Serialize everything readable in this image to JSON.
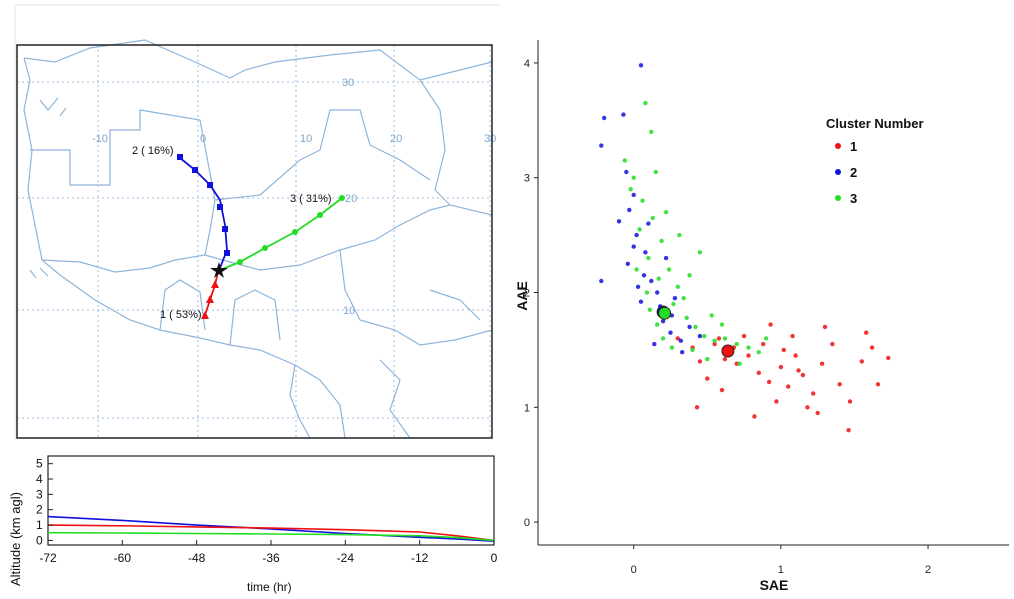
{
  "chart_data": [
    {
      "type": "map",
      "lat_labels": [
        "30",
        "20",
        "10"
      ],
      "lon_labels": [
        "-10",
        "0",
        "10",
        "20",
        "30"
      ],
      "trajectories": [
        {
          "label": "1 ( 53%)",
          "color": "#ee1111"
        },
        {
          "label": "2 ( 16%)",
          "color": "#1111dd"
        },
        {
          "label": "3 ( 31%)",
          "color": "#22dd22"
        }
      ]
    },
    {
      "type": "line",
      "ylabel": "Altitude  (km agl)",
      "xlabel": "time (hr)",
      "x_ticks": [
        -72,
        -60,
        -48,
        -36,
        -24,
        -12,
        0
      ],
      "y_ticks": [
        0,
        1,
        2,
        3,
        4,
        5
      ],
      "xlim": [
        -72,
        0
      ],
      "ylim": [
        -0.3,
        5.5
      ],
      "series": [
        {
          "color": "#1111dd",
          "points": [
            [
              -72,
              1.55
            ],
            [
              -60,
              1.3
            ],
            [
              -48,
              1.0
            ],
            [
              -36,
              0.75
            ],
            [
              -24,
              0.45
            ],
            [
              -12,
              0.2
            ],
            [
              -6,
              0.1
            ],
            [
              0,
              -0.05
            ]
          ]
        },
        {
          "color": "#ee1111",
          "points": [
            [
              -72,
              1.0
            ],
            [
              -60,
              0.95
            ],
            [
              -48,
              0.88
            ],
            [
              -36,
              0.8
            ],
            [
              -24,
              0.7
            ],
            [
              -12,
              0.55
            ],
            [
              -6,
              0.3
            ],
            [
              0,
              0.0
            ]
          ]
        },
        {
          "color": "#22dd22",
          "points": [
            [
              -72,
              0.5
            ],
            [
              -60,
              0.48
            ],
            [
              -48,
              0.45
            ],
            [
              -36,
              0.42
            ],
            [
              -24,
              0.38
            ],
            [
              -12,
              0.3
            ],
            [
              -6,
              0.18
            ],
            [
              0,
              0.0
            ]
          ]
        }
      ]
    },
    {
      "type": "scatter",
      "xlabel": "SAE",
      "ylabel": "AAE",
      "xlim": [
        -0.65,
        2.55
      ],
      "ylim": [
        -0.2,
        4.2
      ],
      "x_ticks": [
        0,
        1,
        2
      ],
      "y_ticks": [
        0,
        1,
        2,
        3,
        4
      ],
      "legend_title": "Cluster Number",
      "legend_entries": [
        "1",
        "2",
        "3"
      ],
      "legend_position": "top-right",
      "colors": [
        "#ee1111",
        "#1111dd",
        "#22dd22"
      ],
      "centroids": [
        {
          "cluster": "1",
          "x": 0.64,
          "y": 1.49
        },
        {
          "cluster": "2",
          "x": 0.2,
          "y": 1.83
        },
        {
          "cluster": "3",
          "x": 0.21,
          "y": 1.82
        }
      ],
      "points": [
        {
          "cluster": "1",
          "x": 0.55,
          "y": 1.55
        },
        {
          "cluster": "1",
          "x": 0.62,
          "y": 1.42
        },
        {
          "cluster": "1",
          "x": 0.7,
          "y": 1.38
        },
        {
          "cluster": "1",
          "x": 0.78,
          "y": 1.45
        },
        {
          "cluster": "1",
          "x": 0.85,
          "y": 1.3
        },
        {
          "cluster": "1",
          "x": 0.92,
          "y": 1.22
        },
        {
          "cluster": "1",
          "x": 1.0,
          "y": 1.35
        },
        {
          "cluster": "1",
          "x": 1.05,
          "y": 1.18
        },
        {
          "cluster": "1",
          "x": 1.1,
          "y": 1.45
        },
        {
          "cluster": "1",
          "x": 1.15,
          "y": 1.28
        },
        {
          "cluster": "1",
          "x": 1.22,
          "y": 1.12
        },
        {
          "cluster": "1",
          "x": 1.28,
          "y": 1.38
        },
        {
          "cluster": "1",
          "x": 1.35,
          "y": 1.55
        },
        {
          "cluster": "1",
          "x": 1.4,
          "y": 1.2
        },
        {
          "cluster": "1",
          "x": 1.47,
          "y": 1.05
        },
        {
          "cluster": "1",
          "x": 1.55,
          "y": 1.4
        },
        {
          "cluster": "1",
          "x": 1.62,
          "y": 1.52
        },
        {
          "cluster": "1",
          "x": 1.73,
          "y": 1.43
        },
        {
          "cluster": "1",
          "x": 1.46,
          "y": 0.8
        },
        {
          "cluster": "1",
          "x": 1.25,
          "y": 0.95
        },
        {
          "cluster": "1",
          "x": 0.82,
          "y": 0.92
        },
        {
          "cluster": "1",
          "x": 0.93,
          "y": 1.72
        },
        {
          "cluster": "1",
          "x": 0.75,
          "y": 1.62
        },
        {
          "cluster": "1",
          "x": 0.45,
          "y": 1.4
        },
        {
          "cluster": "1",
          "x": 0.4,
          "y": 1.52
        },
        {
          "cluster": "1",
          "x": 0.3,
          "y": 1.6
        },
        {
          "cluster": "1",
          "x": 0.5,
          "y": 1.25
        },
        {
          "cluster": "1",
          "x": 0.6,
          "y": 1.15
        },
        {
          "cluster": "1",
          "x": 0.43,
          "y": 1.0
        },
        {
          "cluster": "1",
          "x": 1.08,
          "y": 1.62
        },
        {
          "cluster": "1",
          "x": 1.3,
          "y": 1.7
        },
        {
          "cluster": "1",
          "x": 1.58,
          "y": 1.65
        },
        {
          "cluster": "1",
          "x": 1.66,
          "y": 1.2
        },
        {
          "cluster": "1",
          "x": 1.18,
          "y": 1.0
        },
        {
          "cluster": "1",
          "x": 0.97,
          "y": 1.05
        },
        {
          "cluster": "1",
          "x": 0.68,
          "y": 1.52
        },
        {
          "cluster": "1",
          "x": 0.88,
          "y": 1.55
        },
        {
          "cluster": "1",
          "x": 1.02,
          "y": 1.5
        },
        {
          "cluster": "1",
          "x": 1.12,
          "y": 1.32
        },
        {
          "cluster": "1",
          "x": 0.58,
          "y": 1.6
        },
        {
          "cluster": "2",
          "x": 0.05,
          "y": 3.98
        },
        {
          "cluster": "2",
          "x": -0.2,
          "y": 3.52
        },
        {
          "cluster": "2",
          "x": -0.07,
          "y": 3.55
        },
        {
          "cluster": "2",
          "x": -0.22,
          "y": 3.28
        },
        {
          "cluster": "2",
          "x": -0.05,
          "y": 3.05
        },
        {
          "cluster": "2",
          "x": 0.0,
          "y": 2.85
        },
        {
          "cluster": "2",
          "x": -0.1,
          "y": 2.62
        },
        {
          "cluster": "2",
          "x": 0.02,
          "y": 2.5
        },
        {
          "cluster": "2",
          "x": 0.08,
          "y": 2.35
        },
        {
          "cluster": "2",
          "x": -0.04,
          "y": 2.25
        },
        {
          "cluster": "2",
          "x": 0.12,
          "y": 2.1
        },
        {
          "cluster": "2",
          "x": 0.16,
          "y": 2.0
        },
        {
          "cluster": "2",
          "x": -0.22,
          "y": 2.1
        },
        {
          "cluster": "2",
          "x": 0.05,
          "y": 1.92
        },
        {
          "cluster": "2",
          "x": 0.2,
          "y": 1.75
        },
        {
          "cluster": "2",
          "x": 0.25,
          "y": 1.65
        },
        {
          "cluster": "2",
          "x": 0.32,
          "y": 1.58
        },
        {
          "cluster": "2",
          "x": 0.14,
          "y": 1.55
        },
        {
          "cluster": "2",
          "x": 0.28,
          "y": 1.95
        },
        {
          "cluster": "2",
          "x": 0.03,
          "y": 2.05
        },
        {
          "cluster": "2",
          "x": 0.22,
          "y": 2.3
        },
        {
          "cluster": "2",
          "x": 0.1,
          "y": 2.6
        },
        {
          "cluster": "2",
          "x": -0.03,
          "y": 2.72
        },
        {
          "cluster": "2",
          "x": 0.07,
          "y": 2.15
        },
        {
          "cluster": "2",
          "x": 0.38,
          "y": 1.7
        },
        {
          "cluster": "2",
          "x": 0.18,
          "y": 1.88
        },
        {
          "cluster": "2",
          "x": 0.0,
          "y": 2.4
        },
        {
          "cluster": "2",
          "x": 0.26,
          "y": 1.8
        },
        {
          "cluster": "2",
          "x": 0.33,
          "y": 1.48
        },
        {
          "cluster": "2",
          "x": 0.45,
          "y": 1.62
        },
        {
          "cluster": "3",
          "x": 0.08,
          "y": 3.65
        },
        {
          "cluster": "3",
          "x": 0.12,
          "y": 3.4
        },
        {
          "cluster": "3",
          "x": -0.06,
          "y": 3.15
        },
        {
          "cluster": "3",
          "x": 0.0,
          "y": 3.0
        },
        {
          "cluster": "3",
          "x": 0.15,
          "y": 3.05
        },
        {
          "cluster": "3",
          "x": 0.06,
          "y": 2.8
        },
        {
          "cluster": "3",
          "x": 0.13,
          "y": 2.65
        },
        {
          "cluster": "3",
          "x": 0.04,
          "y": 2.55
        },
        {
          "cluster": "3",
          "x": 0.19,
          "y": 2.45
        },
        {
          "cluster": "3",
          "x": 0.1,
          "y": 2.3
        },
        {
          "cluster": "3",
          "x": 0.24,
          "y": 2.2
        },
        {
          "cluster": "3",
          "x": 0.17,
          "y": 2.12
        },
        {
          "cluster": "3",
          "x": 0.3,
          "y": 2.05
        },
        {
          "cluster": "3",
          "x": 0.09,
          "y": 2.0
        },
        {
          "cluster": "3",
          "x": 0.27,
          "y": 1.9
        },
        {
          "cluster": "3",
          "x": 0.36,
          "y": 1.78
        },
        {
          "cluster": "3",
          "x": 0.42,
          "y": 1.7
        },
        {
          "cluster": "3",
          "x": 0.48,
          "y": 1.62
        },
        {
          "cluster": "3",
          "x": 0.55,
          "y": 1.58
        },
        {
          "cluster": "3",
          "x": 0.62,
          "y": 1.6
        },
        {
          "cluster": "3",
          "x": 0.7,
          "y": 1.55
        },
        {
          "cluster": "3",
          "x": 0.78,
          "y": 1.52
        },
        {
          "cluster": "3",
          "x": 0.85,
          "y": 1.48
        },
        {
          "cluster": "3",
          "x": 0.9,
          "y": 1.6
        },
        {
          "cluster": "3",
          "x": 0.4,
          "y": 1.5
        },
        {
          "cluster": "3",
          "x": 0.5,
          "y": 1.42
        },
        {
          "cluster": "3",
          "x": 0.2,
          "y": 1.6
        },
        {
          "cluster": "3",
          "x": 0.34,
          "y": 1.95
        },
        {
          "cluster": "3",
          "x": 0.45,
          "y": 2.35
        },
        {
          "cluster": "3",
          "x": 0.02,
          "y": 2.2
        },
        {
          "cluster": "3",
          "x": 0.22,
          "y": 2.7
        },
        {
          "cluster": "3",
          "x": 0.31,
          "y": 2.5
        },
        {
          "cluster": "3",
          "x": -0.02,
          "y": 2.9
        },
        {
          "cluster": "3",
          "x": 0.6,
          "y": 1.72
        },
        {
          "cluster": "3",
          "x": 0.72,
          "y": 1.38
        },
        {
          "cluster": "3",
          "x": 0.16,
          "y": 1.72
        },
        {
          "cluster": "3",
          "x": 0.26,
          "y": 1.52
        },
        {
          "cluster": "3",
          "x": 0.53,
          "y": 1.8
        },
        {
          "cluster": "3",
          "x": 0.11,
          "y": 1.85
        },
        {
          "cluster": "3",
          "x": 0.38,
          "y": 2.15
        }
      ]
    }
  ]
}
